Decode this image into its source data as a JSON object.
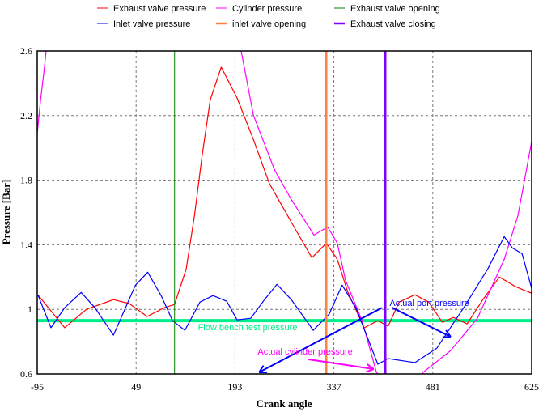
{
  "chart_data": {
    "type": "line",
    "xlabel": "Crank angle",
    "ylabel": "Pressure [Bar]",
    "xlim": [
      -95,
      625
    ],
    "ylim": [
      0.6,
      2.6
    ],
    "x_ticks": [
      "-95",
      "49",
      "193",
      "337",
      "481",
      "625"
    ],
    "y_ticks": [
      "0.6",
      "1",
      "1.4",
      "1.8",
      "2.2",
      "2.6"
    ],
    "grid": "dashed",
    "legend_position": "top",
    "legend": [
      {
        "label": "Exhaust valve pressure",
        "color": "#ff0000"
      },
      {
        "label": "Cylinder pressure",
        "color": "#ff00ff"
      },
      {
        "label": "Exhaust valve opening",
        "color": "#008000"
      },
      {
        "label": "Inlet valve pressure",
        "color": "#0000ff"
      },
      {
        "label": "inlet valve opening",
        "color": "#ff8040"
      },
      {
        "label": "Exhaust valve closing",
        "color": "#8000ff"
      }
    ],
    "series": [
      {
        "name": "Exhaust valve pressure",
        "color": "#ff0000",
        "points": [
          [
            -94,
            1.09
          ],
          [
            -55,
            0.886
          ],
          [
            -23.5,
            1.0
          ],
          [
            16,
            1.06
          ],
          [
            39,
            1.036
          ],
          [
            65,
            0.956
          ],
          [
            90,
            1.01
          ],
          [
            105,
            1.03
          ],
          [
            122,
            1.25
          ],
          [
            134,
            1.58
          ],
          [
            145,
            1.95
          ],
          [
            157,
            2.3
          ],
          [
            173,
            2.5
          ],
          [
            196,
            2.31
          ],
          [
            220,
            2.05
          ],
          [
            243,
            1.78
          ],
          [
            275,
            1.54
          ],
          [
            305,
            1.32
          ],
          [
            326,
            1.41
          ],
          [
            342,
            1.31
          ],
          [
            357,
            1.11
          ],
          [
            381,
            0.885
          ],
          [
            401,
            0.93
          ],
          [
            416,
            0.895
          ],
          [
            432,
            1.045
          ],
          [
            455,
            1.09
          ],
          [
            475,
            1.045
          ],
          [
            495,
            0.92
          ],
          [
            511,
            0.95
          ],
          [
            531,
            0.91
          ],
          [
            554,
            1.06
          ],
          [
            578,
            1.2
          ],
          [
            602,
            1.14
          ],
          [
            625,
            1.1
          ]
        ]
      },
      {
        "name": "Cylinder pressure",
        "color": "#ff00ff",
        "points": [
          [
            -95,
            2.09
          ],
          [
            -90,
            2.3
          ],
          [
            -85,
            2.48
          ],
          [
            -82,
            2.6
          ],
          null,
          [
            202,
            2.6
          ],
          [
            220,
            2.2
          ],
          [
            251,
            1.86
          ],
          [
            275,
            1.68
          ],
          [
            308,
            1.46
          ],
          [
            328,
            1.51
          ],
          [
            342,
            1.41
          ],
          [
            354,
            1.18
          ],
          [
            378,
            0.93
          ],
          [
            399,
            0.61
          ],
          [
            401,
            0.6
          ],
          null,
          [
            465,
            0.6
          ],
          [
            467,
            0.61
          ],
          [
            507,
            0.745
          ],
          [
            546,
            0.945
          ],
          [
            585,
            1.31
          ],
          [
            605,
            1.58
          ],
          [
            625,
            2.04
          ]
        ]
      },
      {
        "name": "Inlet valve pressure",
        "color": "#0000ff",
        "points": [
          [
            -94,
            1.09
          ],
          [
            -75,
            0.886
          ],
          [
            -55,
            1.01
          ],
          [
            -31,
            1.105
          ],
          [
            -11,
            1.01
          ],
          [
            16,
            0.84
          ],
          [
            48,
            1.15
          ],
          [
            66,
            1.23
          ],
          [
            86,
            1.08
          ],
          [
            102,
            0.93
          ],
          [
            120,
            0.87
          ],
          [
            142,
            1.045
          ],
          [
            161,
            1.085
          ],
          [
            181,
            1.05
          ],
          [
            196,
            0.935
          ],
          [
            216,
            0.945
          ],
          [
            236,
            1.06
          ],
          [
            254,
            1.155
          ],
          [
            275,
            1.06
          ],
          [
            307,
            0.87
          ],
          [
            330,
            0.97
          ],
          [
            349,
            1.15
          ],
          [
            369,
            1.01
          ],
          [
            401,
            0.66
          ],
          [
            416,
            0.695
          ],
          [
            455,
            0.67
          ],
          [
            487,
            0.76
          ],
          [
            526,
            1.01
          ],
          [
            561,
            1.25
          ],
          [
            585,
            1.45
          ],
          [
            597,
            1.38
          ],
          [
            611,
            1.345
          ],
          [
            625,
            1.13
          ]
        ]
      }
    ],
    "vertical_markers": [
      {
        "name": "Exhaust valve opening",
        "x": 105,
        "color": "#008000"
      },
      {
        "name": "inlet valve opening",
        "x": 326,
        "color": "#ff8040"
      },
      {
        "name": "Exhaust valve closing",
        "x": 412,
        "color": "#8000ff"
      }
    ],
    "reference_line": {
      "y": 0.93,
      "color": "#00ee88"
    },
    "annotations": [
      {
        "text": "Actual port pressure",
        "color": "#0000ff",
        "x": 418,
        "y": 1.02,
        "arrows": [
          [
            [
              407,
              1.01
            ],
            [
              228,
              0.61
            ]
          ],
          [
            [
              422,
              1.01
            ],
            [
              507,
              0.83
            ]
          ]
        ]
      },
      {
        "text": "Flow bench test pressure",
        "color": "#00ee88",
        "x": 139,
        "y": 0.87
      },
      {
        "text": "Actual cylinder pressure",
        "color": "#ff00ff",
        "x": 226,
        "y": 0.72,
        "arrows": [
          [
            [
              300,
              0.69
            ],
            [
              395,
              0.63
            ]
          ]
        ]
      }
    ]
  }
}
